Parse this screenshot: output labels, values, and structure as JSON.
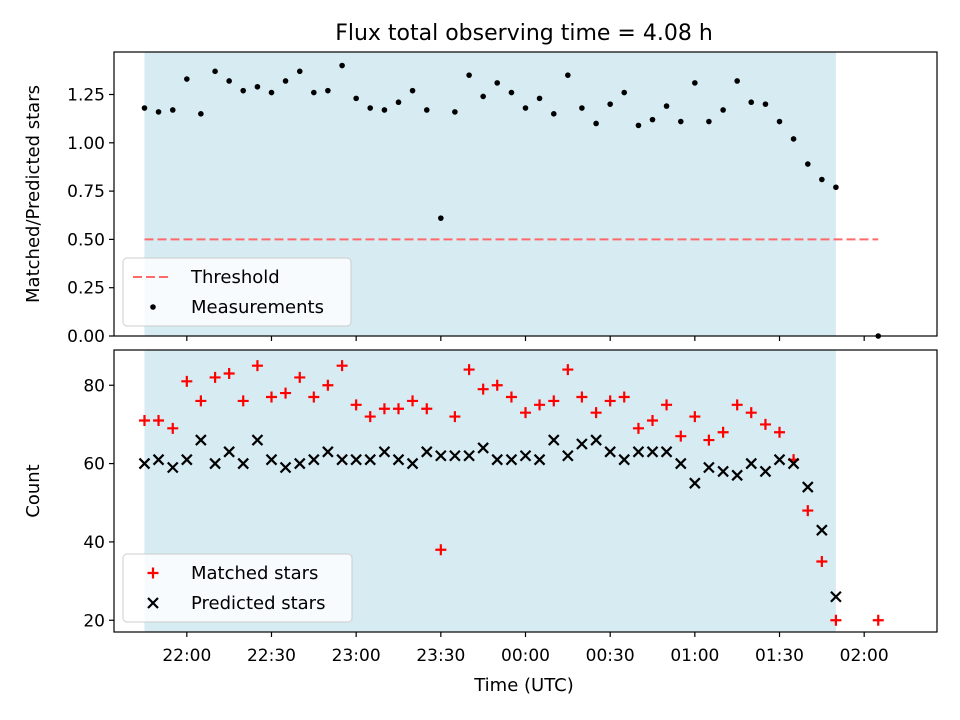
{
  "chart_data": {
    "title": "Flux total observing time = 4.08 h",
    "xlabel": "Time (UTC)",
    "x_unit": "hours after 00:00 UTC (negative = previous day)",
    "xlim": [
      -2.43,
      2.43
    ],
    "xticks": [
      {
        "value": -2.0,
        "label": "22:00"
      },
      {
        "value": -1.5,
        "label": "22:30"
      },
      {
        "value": -1.0,
        "label": "23:00"
      },
      {
        "value": -0.5,
        "label": "23:30"
      },
      {
        "value": 0.0,
        "label": "00:00"
      },
      {
        "value": 0.5,
        "label": "00:30"
      },
      {
        "value": 1.0,
        "label": "01:00"
      },
      {
        "value": 1.5,
        "label": "01:30"
      },
      {
        "value": 2.0,
        "label": "02:00"
      }
    ],
    "observing_span": {
      "start": -2.25,
      "end": 1.833,
      "color": "#add8e6"
    },
    "panels": [
      {
        "type": "scatter",
        "ylabel": "Matched/Predicted stars",
        "ylim": [
          0,
          1.47
        ],
        "yticks": [
          0.0,
          0.25,
          0.5,
          0.75,
          1.0,
          1.25
        ],
        "ytick_labels": [
          "0.00",
          "0.25",
          "0.50",
          "0.75",
          "1.00",
          "1.25"
        ],
        "legend": {
          "position": "lower-left",
          "entries": [
            "Threshold",
            "Measurements"
          ]
        },
        "threshold": {
          "name": "Threshold",
          "value": 0.5,
          "x_start": -2.25,
          "x_end": 2.083,
          "color": "#ff6b6b",
          "style": "dashed"
        },
        "series": [
          {
            "name": "Measurements",
            "marker": "dot",
            "color": "#000000",
            "x": [
              -2.25,
              -2.167,
              -2.083,
              -2.0,
              -1.917,
              -1.833,
              -1.75,
              -1.667,
              -1.583,
              -1.5,
              -1.417,
              -1.333,
              -1.25,
              -1.167,
              -1.083,
              -1.0,
              -0.917,
              -0.833,
              -0.75,
              -0.667,
              -0.583,
              -0.5,
              -0.417,
              -0.333,
              -0.25,
              -0.167,
              -0.083,
              0.0,
              0.083,
              0.167,
              0.25,
              0.333,
              0.417,
              0.5,
              0.583,
              0.667,
              0.75,
              0.833,
              0.917,
              1.0,
              1.083,
              1.167,
              1.25,
              1.333,
              1.417,
              1.5,
              1.583,
              1.667,
              1.75,
              1.833,
              2.083
            ],
            "y": [
              1.18,
              1.16,
              1.17,
              1.33,
              1.15,
              1.37,
              1.32,
              1.27,
              1.29,
              1.26,
              1.32,
              1.37,
              1.26,
              1.27,
              1.4,
              1.23,
              1.18,
              1.17,
              1.21,
              1.27,
              1.17,
              0.61,
              1.16,
              1.35,
              1.24,
              1.31,
              1.26,
              1.18,
              1.23,
              1.15,
              1.35,
              1.18,
              1.1,
              1.2,
              1.26,
              1.09,
              1.12,
              1.19,
              1.11,
              1.31,
              1.11,
              1.17,
              1.32,
              1.21,
              1.2,
              1.11,
              1.02,
              0.89,
              0.81,
              0.77,
              0.0
            ]
          }
        ]
      },
      {
        "type": "scatter",
        "ylabel": "Count",
        "ylim": [
          17,
          89
        ],
        "yticks": [
          20,
          40,
          60,
          80
        ],
        "ytick_labels": [
          "20",
          "40",
          "60",
          "80"
        ],
        "legend": {
          "position": "lower-left",
          "entries": [
            "Matched stars",
            "Predicted stars"
          ]
        },
        "series": [
          {
            "name": "Matched stars",
            "marker": "plus",
            "color": "#ff0000",
            "x": [
              -2.25,
              -2.167,
              -2.083,
              -2.0,
              -1.917,
              -1.833,
              -1.75,
              -1.667,
              -1.583,
              -1.5,
              -1.417,
              -1.333,
              -1.25,
              -1.167,
              -1.083,
              -1.0,
              -0.917,
              -0.833,
              -0.75,
              -0.667,
              -0.583,
              -0.5,
              -0.417,
              -0.333,
              -0.25,
              -0.167,
              -0.083,
              0.0,
              0.083,
              0.167,
              0.25,
              0.333,
              0.417,
              0.5,
              0.583,
              0.667,
              0.75,
              0.833,
              0.917,
              1.0,
              1.083,
              1.167,
              1.25,
              1.333,
              1.417,
              1.5,
              1.583,
              1.667,
              1.75,
              1.833,
              2.083
            ],
            "y": [
              71,
              71,
              69,
              81,
              76,
              82,
              83,
              76,
              85,
              77,
              78,
              82,
              77,
              80,
              85,
              75,
              72,
              74,
              74,
              76,
              74,
              38,
              72,
              84,
              79,
              80,
              77,
              73,
              75,
              76,
              84,
              77,
              73,
              76,
              77,
              69,
              71,
              75,
              67,
              72,
              66,
              68,
              75,
              73,
              70,
              68,
              61,
              48,
              35,
              20,
              20
            ]
          },
          {
            "name": "Predicted stars",
            "marker": "x",
            "color": "#000000",
            "x": [
              -2.25,
              -2.167,
              -2.083,
              -2.0,
              -1.917,
              -1.833,
              -1.75,
              -1.667,
              -1.583,
              -1.5,
              -1.417,
              -1.333,
              -1.25,
              -1.167,
              -1.083,
              -1.0,
              -0.917,
              -0.833,
              -0.75,
              -0.667,
              -0.583,
              -0.5,
              -0.417,
              -0.333,
              -0.25,
              -0.167,
              -0.083,
              0.0,
              0.083,
              0.167,
              0.25,
              0.333,
              0.417,
              0.5,
              0.583,
              0.667,
              0.75,
              0.833,
              0.917,
              1.0,
              1.083,
              1.167,
              1.25,
              1.333,
              1.417,
              1.5,
              1.583,
              1.667,
              1.75,
              1.833
            ],
            "y": [
              60,
              61,
              59,
              61,
              66,
              60,
              63,
              60,
              66,
              61,
              59,
              60,
              61,
              63,
              61,
              61,
              61,
              63,
              61,
              60,
              63,
              62,
              62,
              62,
              64,
              61,
              61,
              62,
              61,
              66,
              62,
              65,
              66,
              63,
              61,
              63,
              63,
              63,
              60,
              55,
              59,
              58,
              57,
              60,
              58,
              61,
              60,
              54,
              43,
              26
            ]
          }
        ]
      }
    ]
  }
}
